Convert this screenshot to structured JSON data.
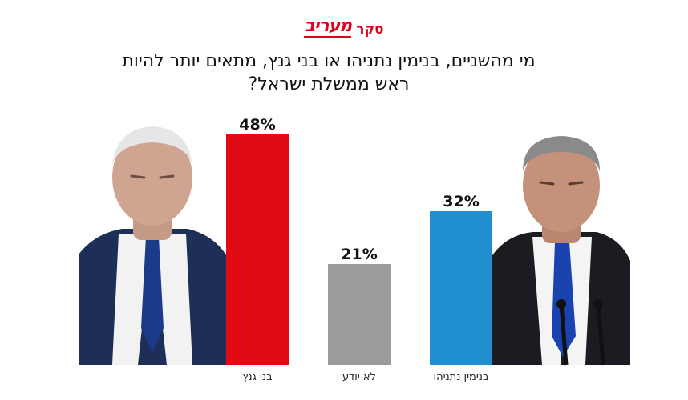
{
  "header": {
    "logo_word": "מעריב",
    "logo_sub": "סקר"
  },
  "colors": {
    "gantz": "#e00a13",
    "dont_know": "#9b9b9b",
    "netanyahu": "#1f8fd0",
    "logo": "#e0001b"
  },
  "chart_data": {
    "type": "bar",
    "title": "מי מהשניים, בנימין נתניהו או בני גנץ, מתאים יותר להיות ראש ממשלת ישראל?",
    "categories": [
      "בני גנץ",
      "לא יודע",
      "בנימין נתניהו"
    ],
    "values": [
      48,
      21,
      32
    ],
    "value_labels": [
      "48%",
      "21%",
      "32%"
    ],
    "unit": "%",
    "ylim": [
      0,
      55
    ],
    "grid": false,
    "legend": "none"
  },
  "photos": {
    "left": "person-photo",
    "right": "person-photo"
  }
}
